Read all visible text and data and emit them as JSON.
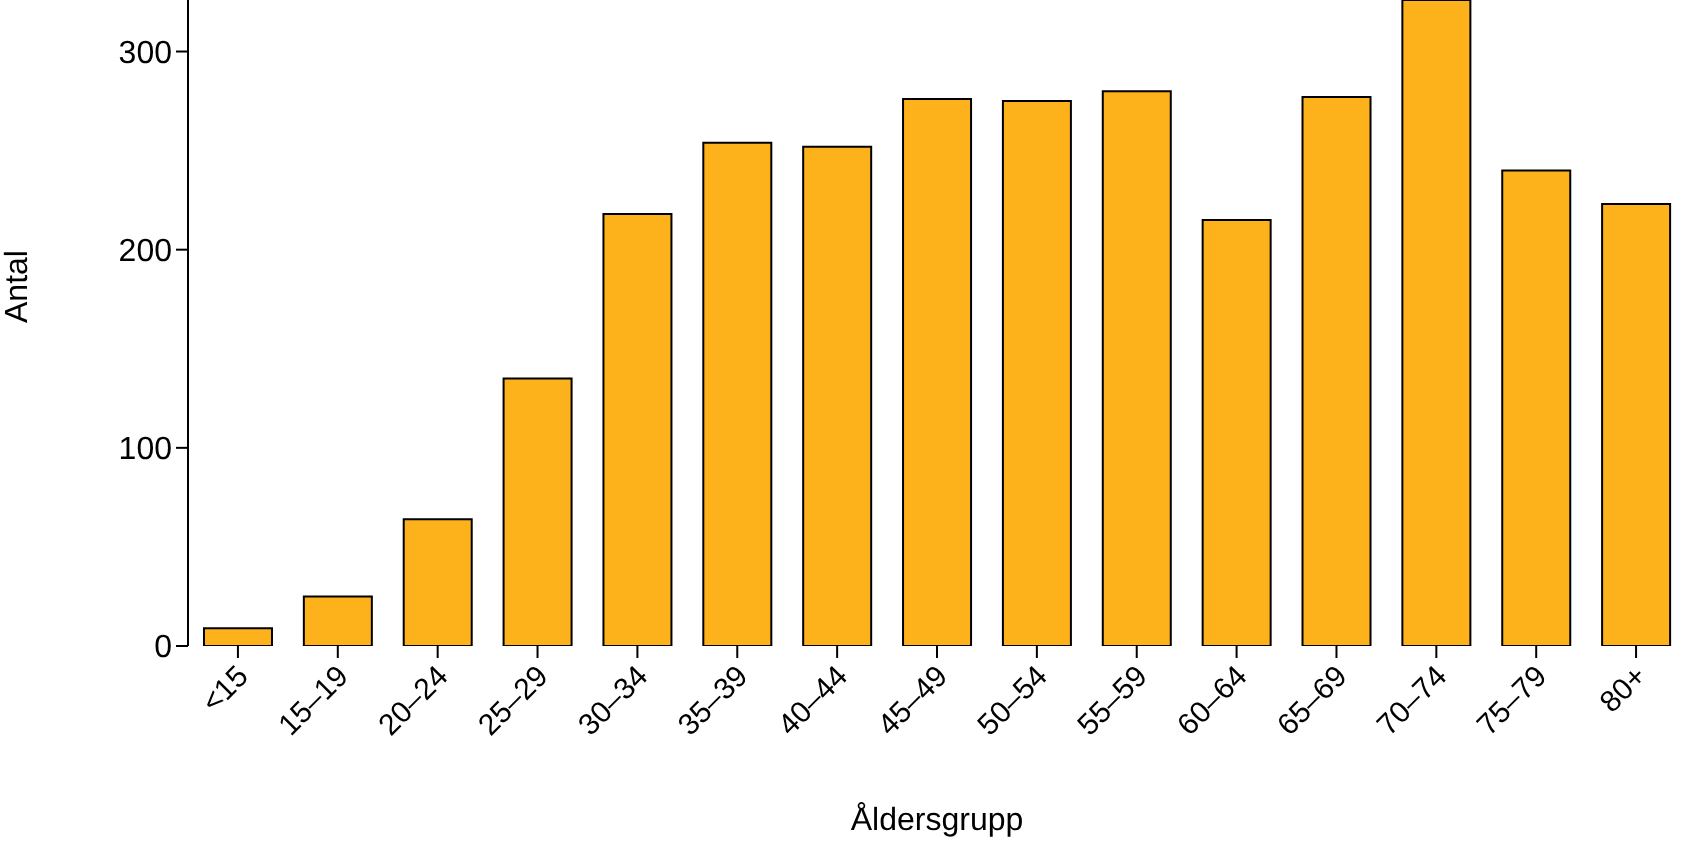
{
  "chart_data": {
    "type": "bar",
    "xlabel": "Åldersgrupp",
    "ylabel": "Antal",
    "categories": [
      "<15",
      "15–19",
      "20–24",
      "25–29",
      "30–34",
      "35–39",
      "40–44",
      "45–49",
      "50–54",
      "55–59",
      "60–64",
      "65–69",
      "70–74",
      "75–79",
      "80+"
    ],
    "values": [
      9,
      25,
      64,
      135,
      218,
      254,
      252,
      276,
      275,
      280,
      215,
      277,
      326,
      240,
      223
    ],
    "color": "#fdb11b",
    "ylim": [
      0,
      326
    ],
    "yticks": [
      0,
      100,
      200,
      300
    ],
    "grid": false,
    "legend": false
  }
}
